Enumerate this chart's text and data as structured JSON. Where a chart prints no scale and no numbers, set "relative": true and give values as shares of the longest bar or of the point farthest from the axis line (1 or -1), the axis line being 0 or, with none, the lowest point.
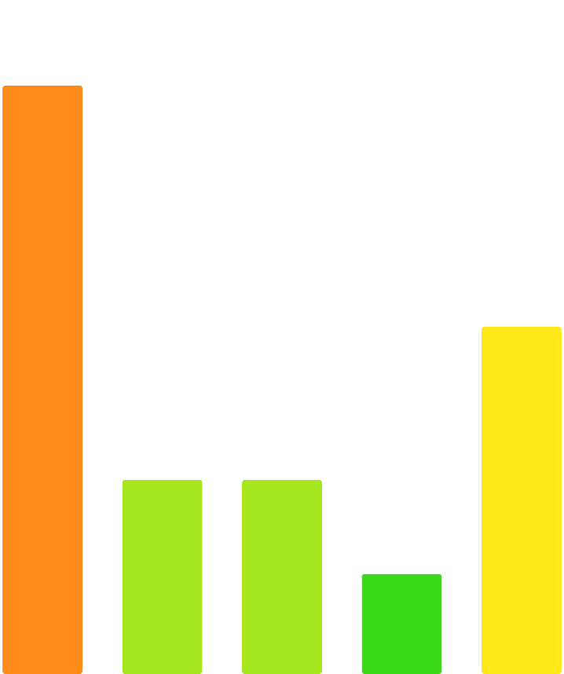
{
  "chart_data": {
    "type": "bar",
    "relative": true,
    "categories": [
      null,
      null,
      null,
      null,
      null
    ],
    "values": [
      1,
      0.33,
      0.33,
      0.17,
      0.59
    ],
    "colors": [
      "#ff8c1a",
      "#a6e61f",
      "#a6e61f",
      "#3cd81a",
      "#ffe81a"
    ]
  }
}
